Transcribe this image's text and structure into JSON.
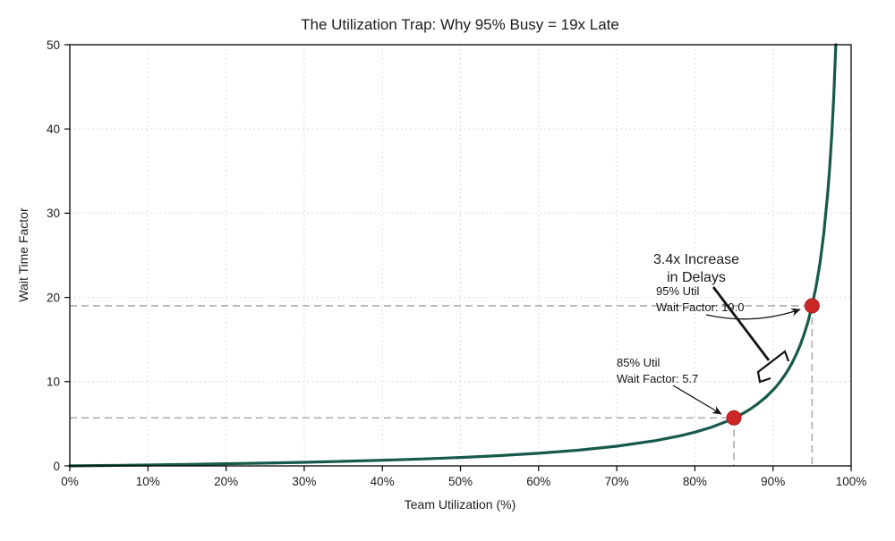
{
  "figure": {
    "background": "#ffffff",
    "spine_color": "#000000",
    "text_color": "#1a1a1a"
  },
  "chart_data": {
    "type": "line",
    "title": "The Utilization Trap: Why 95% Busy = 19x Late",
    "xlabel": "Team Utilization (%)",
    "ylabel": "Wait Time Factor",
    "xlim": [
      0,
      1
    ],
    "ylim": [
      0,
      50
    ],
    "grid": true,
    "grid_color": "#dcdcdc",
    "reference_line_color": "#b0b0b0",
    "x_ticks": [
      {
        "value": 0.0,
        "label": "0%"
      },
      {
        "value": 0.1,
        "label": "10%"
      },
      {
        "value": 0.2,
        "label": "20%"
      },
      {
        "value": 0.3,
        "label": "30%"
      },
      {
        "value": 0.4,
        "label": "40%"
      },
      {
        "value": 0.5,
        "label": "50%"
      },
      {
        "value": 0.6,
        "label": "60%"
      },
      {
        "value": 0.7,
        "label": "70%"
      },
      {
        "value": 0.8,
        "label": "80%"
      },
      {
        "value": 0.9,
        "label": "90%"
      },
      {
        "value": 1.0,
        "label": "100%"
      }
    ],
    "y_ticks": [
      {
        "value": 0,
        "label": "0"
      },
      {
        "value": 10,
        "label": "10"
      },
      {
        "value": 20,
        "label": "20"
      },
      {
        "value": 30,
        "label": "30"
      },
      {
        "value": 40,
        "label": "40"
      },
      {
        "value": 50,
        "label": "50"
      }
    ],
    "series": [
      {
        "name": "Wait Time Factor",
        "color": "#17594b",
        "x": [
          0,
          0.05,
          0.1,
          0.15,
          0.2,
          0.25,
          0.3,
          0.35,
          0.4,
          0.45,
          0.5,
          0.55,
          0.6,
          0.65,
          0.7,
          0.75,
          0.78,
          0.8,
          0.82,
          0.84,
          0.85,
          0.86,
          0.87,
          0.88,
          0.89,
          0.9,
          0.905,
          0.91,
          0.915,
          0.92,
          0.925,
          0.93,
          0.935,
          0.94,
          0.945,
          0.95,
          0.955,
          0.96,
          0.965,
          0.97,
          0.9725,
          0.975,
          0.9775,
          0.98,
          0.9804
        ],
        "y": [
          0,
          0.053,
          0.111,
          0.176,
          0.25,
          0.333,
          0.429,
          0.538,
          0.667,
          0.818,
          1.0,
          1.222,
          1.5,
          1.857,
          2.333,
          3.0,
          3.545,
          4.0,
          4.556,
          5.25,
          5.667,
          6.143,
          6.692,
          7.333,
          8.091,
          9.0,
          9.526,
          10.111,
          10.765,
          11.5,
          12.333,
          13.286,
          14.385,
          15.667,
          17.182,
          19.0,
          21.222,
          24.0,
          27.571,
          32.333,
          35.364,
          39.0,
          43.444,
          49.0,
          50.0
        ]
      }
    ],
    "highlight_points": [
      {
        "x": 0.85,
        "y": 5.7,
        "color": "#cc2727",
        "edge_color": "#a31f1f",
        "label_line1": "85% Util",
        "label_line2": "Wait Factor: 5.7"
      },
      {
        "x": 0.95,
        "y": 19.0,
        "color": "#cc2727",
        "edge_color": "#a31f1f",
        "label_line1": "95% Util",
        "label_line2": "Wait Factor: 19.0"
      }
    ],
    "callout": {
      "line1": "3.4x Increase",
      "line2": "in Delays",
      "color": "#c0433c"
    }
  }
}
